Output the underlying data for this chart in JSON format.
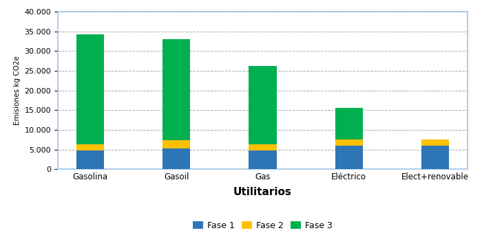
{
  "categories": [
    "Gasolina",
    "Gasoil",
    "Gas",
    "Eléctrico",
    "Elect+renovable"
  ],
  "fase1": [
    4800,
    5300,
    4800,
    6000,
    6000
  ],
  "fase2": [
    1500,
    2000,
    1500,
    1500,
    1500
  ],
  "fase3": [
    28000,
    25700,
    20000,
    8000,
    0
  ],
  "colors": {
    "fase1": "#2E75B6",
    "fase2": "#FFC000",
    "fase3": "#00B050"
  },
  "xlabel": "Utilitarios",
  "ylabel": "Emisiones kg CO2e",
  "ylim": [
    0,
    40000
  ],
  "yticks": [
    0,
    5000,
    10000,
    15000,
    20000,
    25000,
    30000,
    35000,
    40000
  ],
  "legend_labels": [
    "Fase 1",
    "Fase 2",
    "Fase 3"
  ],
  "background_color": "#FFFFFF",
  "plot_bg_color": "#FFFFFF",
  "grid_color": "#AAAAAA",
  "border_color": "#9DC3E6"
}
